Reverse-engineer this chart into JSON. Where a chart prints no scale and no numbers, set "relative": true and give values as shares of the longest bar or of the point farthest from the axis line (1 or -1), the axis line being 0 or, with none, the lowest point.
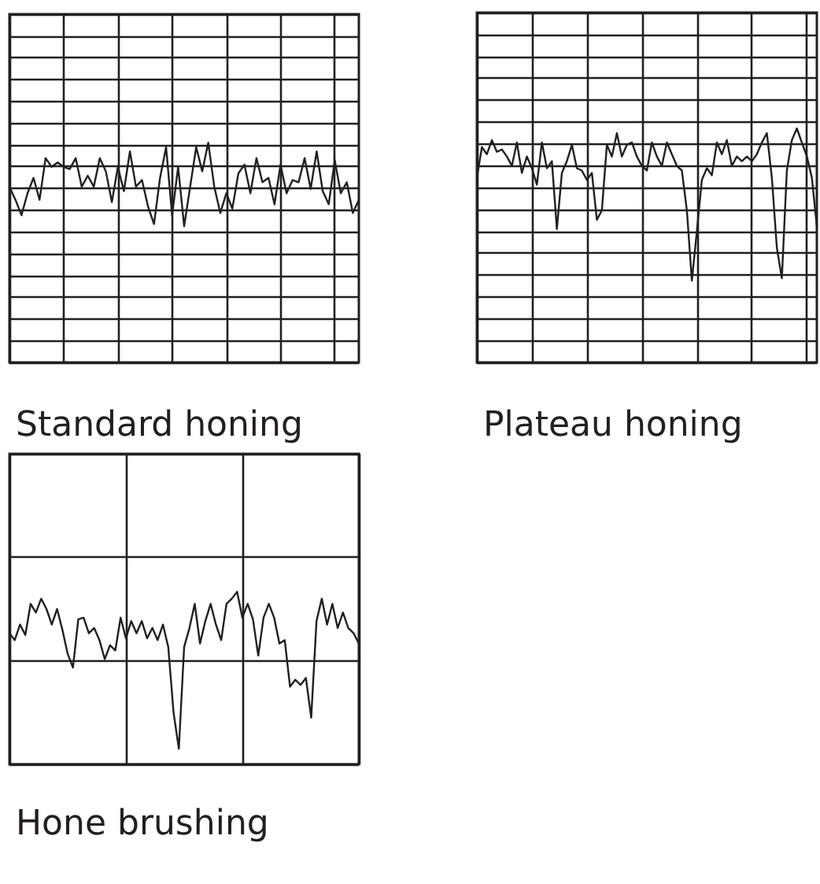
{
  "chart_data": [
    {
      "type": "line",
      "title": "Standard honing",
      "relative": true,
      "grid": true,
      "color": "#231f20",
      "categories": [
        null,
        null,
        null,
        null,
        null,
        null,
        null,
        null,
        null,
        null,
        null,
        null,
        null,
        null,
        null,
        null,
        null,
        null,
        null,
        null,
        null,
        null,
        null,
        null,
        null,
        null,
        null,
        null,
        null,
        null,
        null,
        null,
        null,
        null,
        null,
        null,
        null,
        null,
        null,
        null,
        null,
        null,
        null,
        null,
        null,
        null,
        null,
        null,
        null,
        null,
        null,
        null,
        null,
        null,
        null,
        null,
        null,
        null,
        null
      ],
      "values": [
        0.8,
        0.74,
        0.67,
        0.77,
        0.84,
        0.74,
        0.93,
        0.89,
        0.91,
        0.89,
        0.88,
        0.93,
        0.8,
        0.85,
        0.8,
        0.93,
        0.87,
        0.73,
        0.89,
        0.78,
        0.96,
        0.8,
        0.83,
        0.71,
        0.63,
        0.84,
        0.98,
        0.67,
        0.89,
        0.62,
        0.8,
        0.98,
        0.87,
        1,
        0.8,
        0.68,
        0.77,
        0.7,
        0.86,
        0.9,
        0.77,
        0.93,
        0.82,
        0.84,
        0.72,
        0.9,
        0.77,
        0.83,
        0.82,
        0.93,
        0.79,
        0.96,
        0.78,
        0.72,
        0.92,
        0.77,
        0.82,
        0.68,
        0.74
      ]
    },
    {
      "type": "line",
      "title": "Plateau honing",
      "relative": true,
      "grid": true,
      "color": "#231f20",
      "categories": [
        null,
        null,
        null,
        null,
        null,
        null,
        null,
        null,
        null,
        null,
        null,
        null,
        null,
        null,
        null,
        null,
        null,
        null,
        null,
        null,
        null,
        null,
        null,
        null,
        null,
        null,
        null,
        null,
        null,
        null,
        null,
        null,
        null,
        null,
        null,
        null,
        null,
        null,
        null,
        null,
        null,
        null,
        null,
        null,
        null,
        null,
        null,
        null,
        null,
        null,
        null,
        null,
        null,
        null,
        null,
        null,
        null,
        null,
        null,
        null,
        null,
        null,
        null,
        null,
        null,
        null,
        null,
        null,
        null
      ],
      "values": [
        0.79,
        0.92,
        0.89,
        0.95,
        0.9,
        0.91,
        0.88,
        0.84,
        0.94,
        0.81,
        0.88,
        0.83,
        0.76,
        0.94,
        0.83,
        0.86,
        0.57,
        0.81,
        0.86,
        0.93,
        0.83,
        0.82,
        0.78,
        0.81,
        0.61,
        0.65,
        0.93,
        0.88,
        0.98,
        0.88,
        0.93,
        0.94,
        0.88,
        0.84,
        0.82,
        0.94,
        0.88,
        0.84,
        0.94,
        0.89,
        0.84,
        0.82,
        0.65,
        0.35,
        0.56,
        0.78,
        0.83,
        0.8,
        0.94,
        0.89,
        0.95,
        0.84,
        0.88,
        0.86,
        0.88,
        0.86,
        0.89,
        0.94,
        0.98,
        0.79,
        0.49,
        0.36,
        0.82,
        0.95,
        1,
        0.94,
        0.88,
        0.79,
        0.58
      ]
    },
    {
      "type": "line",
      "title": "Hone brushing",
      "relative": true,
      "grid": true,
      "color": "#231f20",
      "categories": [
        null,
        null,
        null,
        null,
        null,
        null,
        null,
        null,
        null,
        null,
        null,
        null,
        null,
        null,
        null,
        null,
        null,
        null,
        null,
        null,
        null,
        null,
        null,
        null,
        null,
        null,
        null,
        null,
        null,
        null,
        null,
        null,
        null,
        null,
        null,
        null,
        null,
        null,
        null,
        null,
        null,
        null,
        null,
        null,
        null,
        null,
        null,
        null,
        null,
        null,
        null,
        null,
        null,
        null,
        null,
        null,
        null,
        null,
        null,
        null,
        null,
        null,
        null,
        null,
        null,
        null,
        null
      ],
      "values": [
        0.76,
        0.72,
        0.81,
        0.75,
        0.93,
        0.88,
        0.96,
        0.9,
        0.81,
        0.9,
        0.78,
        0.64,
        0.56,
        0.84,
        0.85,
        0.76,
        0.79,
        0.72,
        0.61,
        0.69,
        0.66,
        0.85,
        0.73,
        0.83,
        0.76,
        0.83,
        0.73,
        0.79,
        0.72,
        0.81,
        0.68,
        0.3,
        0.09,
        0.68,
        0.79,
        0.93,
        0.7,
        0.83,
        0.93,
        0.81,
        0.72,
        0.93,
        0.96,
        1,
        0.85,
        0.93,
        0.84,
        0.63,
        0.85,
        0.93,
        0.85,
        0.7,
        0.72,
        0.45,
        0.49,
        0.46,
        0.5,
        0.27,
        0.83,
        0.96,
        0.81,
        0.93,
        0.79,
        0.88,
        0.79,
        0.76,
        0.7
      ]
    }
  ]
}
